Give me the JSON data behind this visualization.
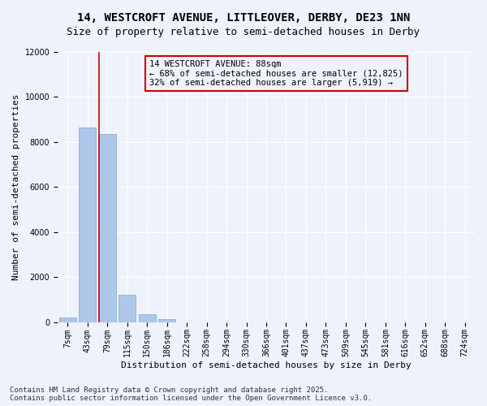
{
  "title_line1": "14, WESTCROFT AVENUE, LITTLEOVER, DERBY, DE23 1NN",
  "title_line2": "Size of property relative to semi-detached houses in Derby",
  "xlabel": "Distribution of semi-detached houses by size in Derby",
  "ylabel": "Number of semi-detached properties",
  "categories": [
    "7sqm",
    "43sqm",
    "79sqm",
    "115sqm",
    "150sqm",
    "186sqm",
    "222sqm",
    "258sqm",
    "294sqm",
    "330sqm",
    "366sqm",
    "401sqm",
    "437sqm",
    "473sqm",
    "509sqm",
    "545sqm",
    "581sqm",
    "616sqm",
    "652sqm",
    "688sqm",
    "724sqm"
  ],
  "values": [
    200,
    8650,
    8350,
    1200,
    340,
    130,
    0,
    0,
    0,
    0,
    0,
    0,
    0,
    0,
    0,
    0,
    0,
    0,
    0,
    0,
    0
  ],
  "bar_color": "#aec6e8",
  "bar_edgecolor": "#7aaad0",
  "property_line_color": "#cc0000",
  "ylim": [
    0,
    12000
  ],
  "yticks": [
    0,
    2000,
    4000,
    6000,
    8000,
    10000,
    12000
  ],
  "annotation_title": "14 WESTCROFT AVENUE: 88sqm",
  "annotation_line1": "← 68% of semi-detached houses are smaller (12,825)",
  "annotation_line2": "32% of semi-detached houses are larger (5,919) →",
  "annotation_box_color": "#cc0000",
  "footer_line1": "Contains HM Land Registry data © Crown copyright and database right 2025.",
  "footer_line2": "Contains public sector information licensed under the Open Government Licence v3.0.",
  "background_color": "#eef2fb",
  "grid_color": "#ffffff",
  "title_fontsize": 10,
  "subtitle_fontsize": 9,
  "axis_label_fontsize": 8,
  "tick_fontsize": 7,
  "annotation_fontsize": 7.5,
  "footer_fontsize": 6.5
}
